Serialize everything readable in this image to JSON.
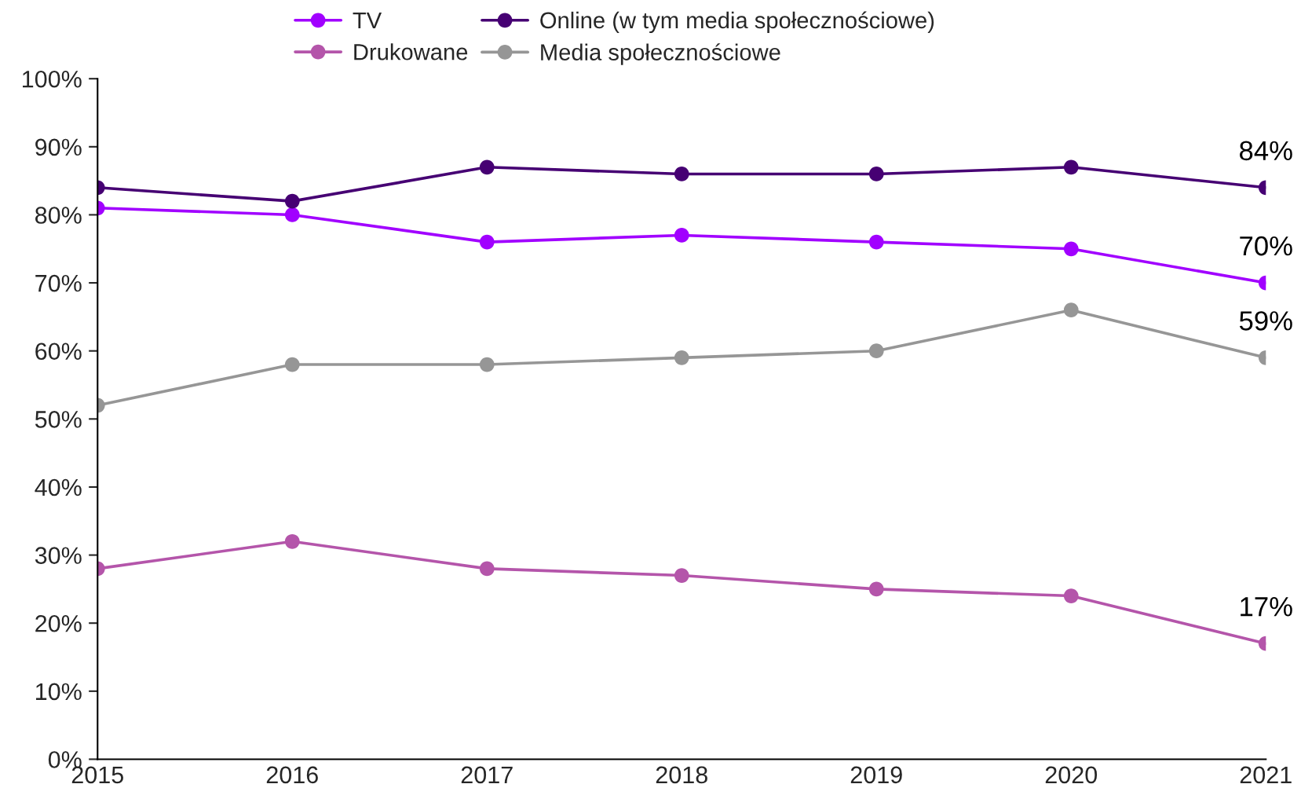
{
  "chart_data": {
    "type": "line",
    "categories": [
      "2015",
      "2016",
      "2017",
      "2018",
      "2019",
      "2020",
      "2021"
    ],
    "series": [
      {
        "name": "TV",
        "color": "#a100ff",
        "values": [
          81,
          80,
          76,
          77,
          76,
          75,
          70
        ],
        "value_labels": [
          null,
          null,
          null,
          null,
          null,
          null,
          "70%"
        ]
      },
      {
        "name": "Drukowane",
        "color": "#b455aa",
        "values": [
          28,
          32,
          28,
          27,
          25,
          24,
          17
        ],
        "value_labels": [
          null,
          null,
          null,
          null,
          null,
          null,
          "17%"
        ]
      },
      {
        "name": "Online (w tym media społecznościowe)",
        "color": "#460073",
        "values": [
          84,
          82,
          87,
          86,
          86,
          87,
          84
        ],
        "value_labels": [
          null,
          null,
          null,
          null,
          null,
          null,
          "84%"
        ]
      },
      {
        "name": "Media społecznościowe",
        "color": "#969696",
        "values": [
          52,
          58,
          58,
          59,
          60,
          66,
          59
        ],
        "value_labels": [
          null,
          null,
          null,
          null,
          null,
          null,
          "59%"
        ]
      }
    ],
    "ylim": [
      0,
      100
    ],
    "yticks": [
      {
        "value": 0,
        "label": "0%"
      },
      {
        "value": 10,
        "label": "10%"
      },
      {
        "value": 20,
        "label": "20%"
      },
      {
        "value": 30,
        "label": "30%"
      },
      {
        "value": 40,
        "label": "40%"
      },
      {
        "value": 50,
        "label": "50%"
      },
      {
        "value": 60,
        "label": "60%"
      },
      {
        "value": 70,
        "label": "70%"
      },
      {
        "value": 80,
        "label": "80%"
      },
      {
        "value": 90,
        "label": "90%"
      },
      {
        "value": 100,
        "label": "100%"
      }
    ],
    "marker": "circle",
    "line_style": "solid",
    "grid": false,
    "legend": "top"
  }
}
